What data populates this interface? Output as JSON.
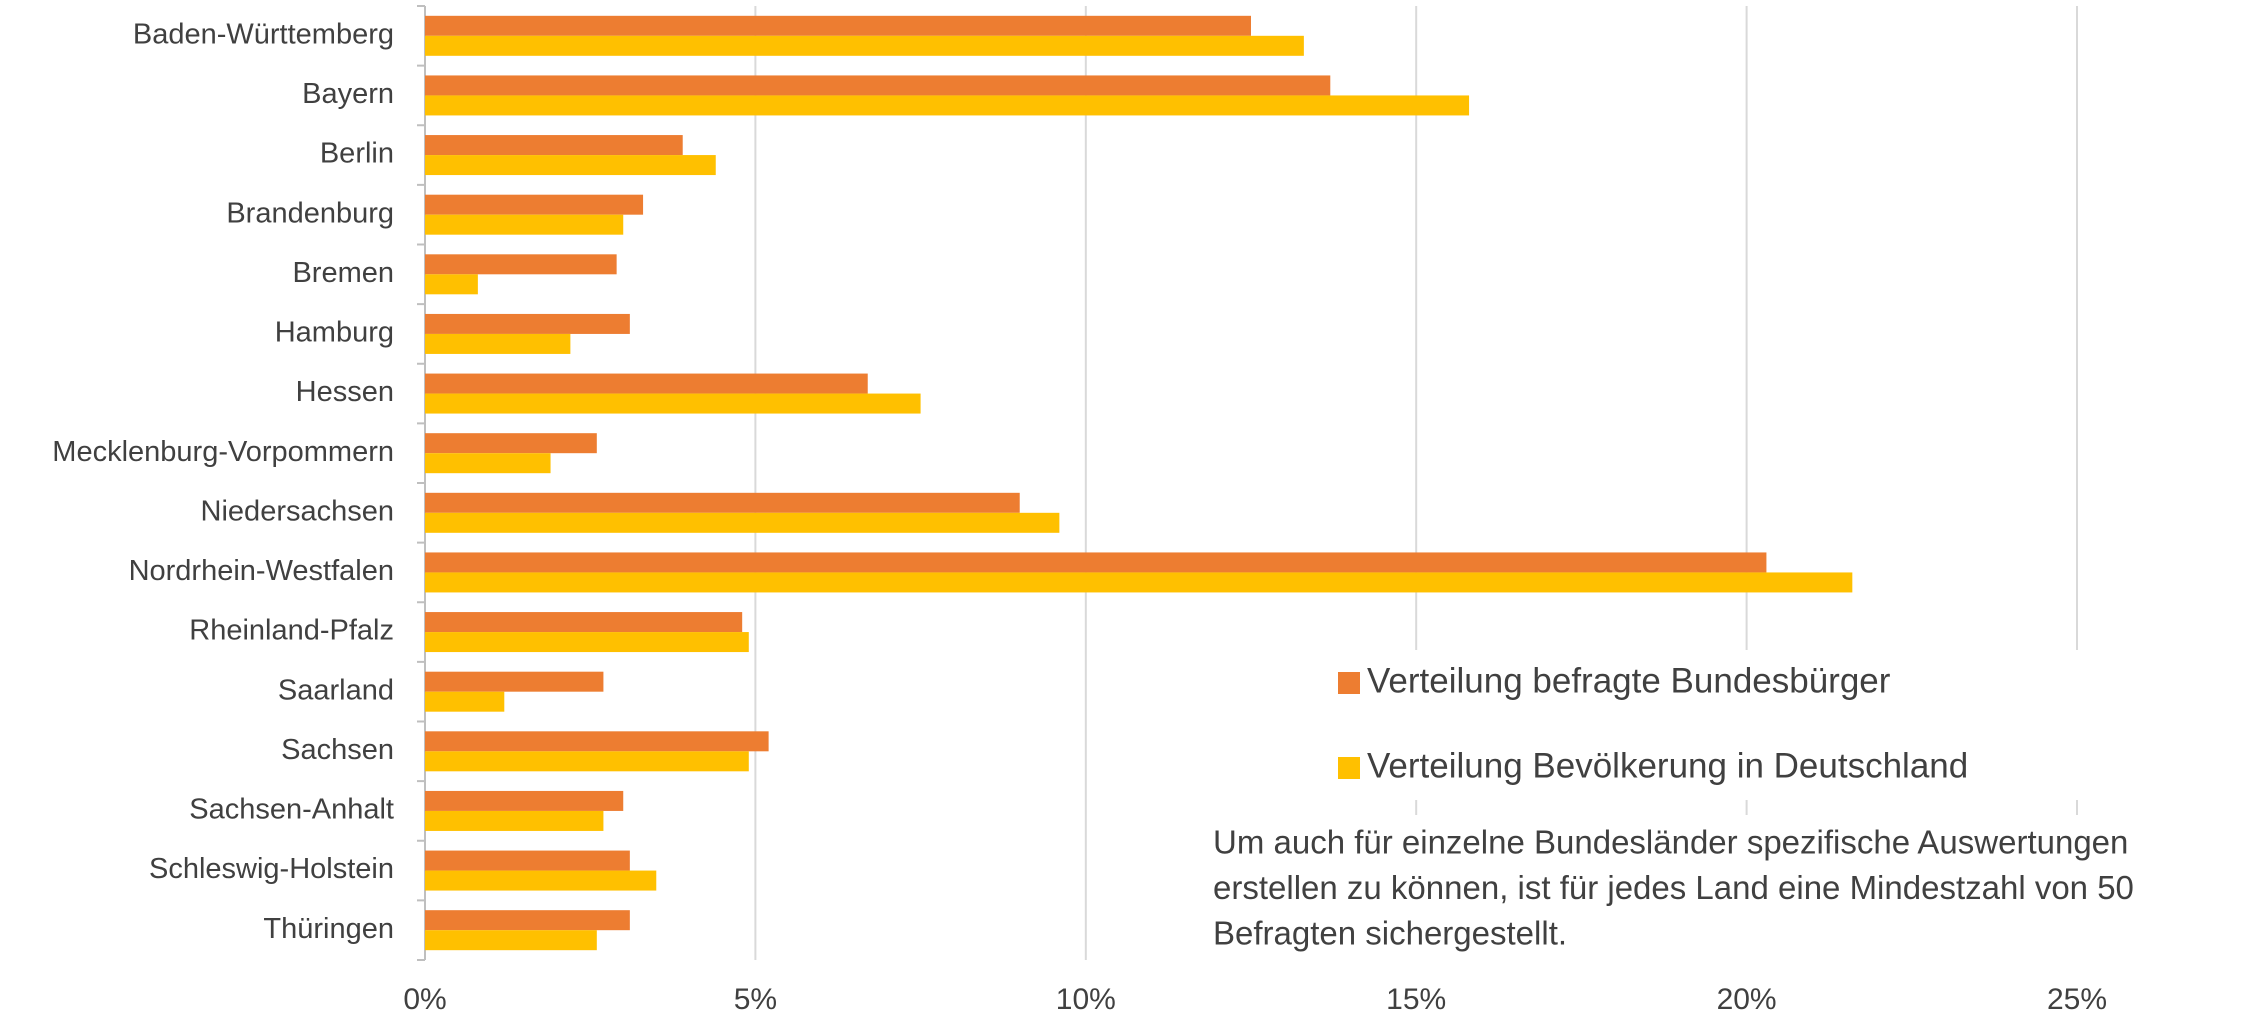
{
  "chart_data": {
    "type": "bar",
    "orientation": "horizontal",
    "categories": [
      "Baden-Württemberg",
      "Bayern",
      "Berlin",
      "Brandenburg",
      "Bremen",
      "Hamburg",
      "Hessen",
      "Mecklenburg-Vorpommern",
      "Niedersachsen",
      "Nordrhein-Westfalen",
      "Rheinland-Pfalz",
      "Saarland",
      "Sachsen",
      "Sachsen-Anhalt",
      "Schleswig-Holstein",
      "Thüringen"
    ],
    "series": [
      {
        "name": "Verteilung befragte Bundesbürger",
        "color": "#ed7d31",
        "values": [
          12.5,
          13.7,
          3.9,
          3.3,
          2.9,
          3.1,
          6.7,
          2.6,
          9.0,
          20.3,
          4.8,
          2.7,
          5.2,
          3.0,
          3.1,
          3.1
        ]
      },
      {
        "name": "Verteilung Bevölkerung in Deutschland",
        "color": "#ffc000",
        "values": [
          13.3,
          15.8,
          4.4,
          3.0,
          0.8,
          2.2,
          7.5,
          1.9,
          9.6,
          21.6,
          4.9,
          1.2,
          4.9,
          2.7,
          3.5,
          2.6
        ]
      }
    ],
    "xlim": [
      0,
      25
    ],
    "xticks": [
      {
        "value": 0,
        "label": "0%"
      },
      {
        "value": 5,
        "label": "5%"
      },
      {
        "value": 10,
        "label": "10%"
      },
      {
        "value": 15,
        "label": "15%"
      },
      {
        "value": 20,
        "label": "20%"
      },
      {
        "value": 25,
        "label": "25%"
      }
    ],
    "grid": true,
    "annotation": [
      "Um auch für einzelne Bundesländer spezifische Auswertungen",
      "erstellen zu können, ist für jedes Land eine Mindestzahl von 50",
      "Befragten sichergestellt."
    ]
  }
}
